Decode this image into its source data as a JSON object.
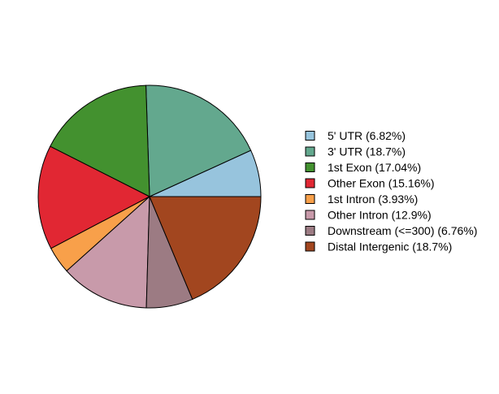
{
  "chart_data": {
    "type": "pie",
    "start_angle_deg": 0,
    "direction": "counterclockwise",
    "legend_position": "right",
    "slices": [
      {
        "label": "5' UTR (6.82%)",
        "value": 6.82,
        "color": "#97C4DD"
      },
      {
        "label": "3' UTR (18.7%)",
        "value": 18.7,
        "color": "#63A88E"
      },
      {
        "label": "1st Exon (17.04%)",
        "value": 17.04,
        "color": "#43912F"
      },
      {
        "label": "Other Exon (15.16%)",
        "value": 15.16,
        "color": "#E12733"
      },
      {
        "label": "1st Intron (3.93%)",
        "value": 3.93,
        "color": "#F8A04A"
      },
      {
        "label": "Other Intron (12.9%)",
        "value": 12.9,
        "color": "#C89AAA"
      },
      {
        "label": "Downstream (<=300) (6.76%)",
        "value": 6.76,
        "color": "#9C7B83"
      },
      {
        "label": "Distal Intergenic (18.7%)",
        "value": 18.7,
        "color": "#A2461F"
      }
    ]
  }
}
